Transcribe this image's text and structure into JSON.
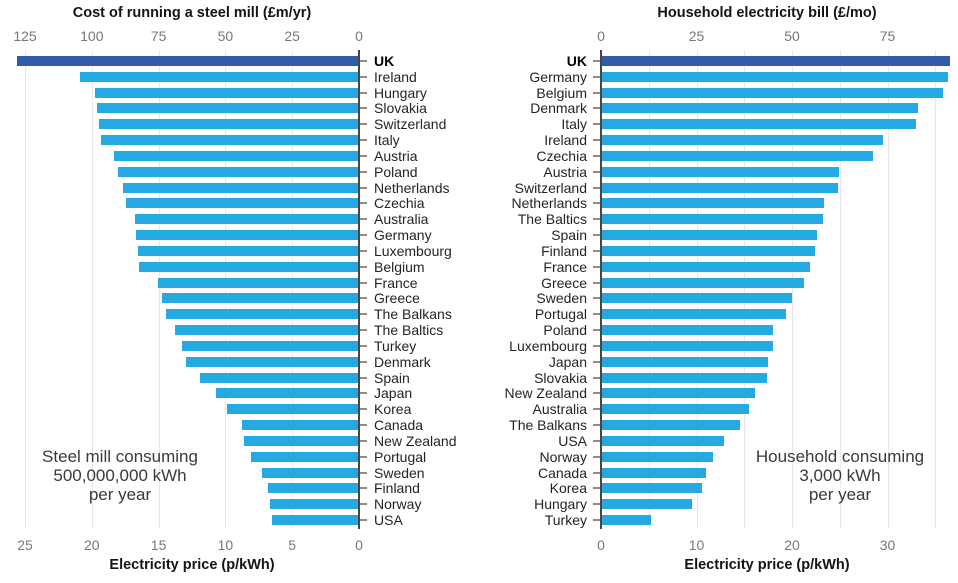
{
  "colors": {
    "uk_bar": "#305ca8",
    "bar": "#25a9e2",
    "zero_axis": "#454545",
    "gridline": "#e9e9e9",
    "axis_text": "#787878",
    "label_text": "#242424"
  },
  "chart_data": [
    {
      "type": "bar",
      "orientation": "horizontal",
      "bars_extend": "left",
      "title": "Cost of running a steel mill (£m/yr)",
      "top_axis": {
        "ticks": [
          125,
          100,
          75,
          50,
          25,
          0
        ],
        "unit": "£m/yr",
        "gbp_m_per_p_kwh": 5
      },
      "bottom_axis": {
        "label": "Electricity price (p/kWh)",
        "ticks": [
          25,
          20,
          15,
          10,
          5,
          0
        ],
        "unit": "p/kWh"
      },
      "xlim_p_kwh": [
        0,
        25.6
      ],
      "gridlines_p_kwh": [
        5,
        10,
        15,
        20,
        25
      ],
      "grid": true,
      "legend": "none",
      "highlight_category": "UK",
      "annotation_lines": [
        "Steel mill consuming",
        "500,000,000 kWh",
        "per year"
      ],
      "categories": [
        "UK",
        "Ireland",
        "Hungary",
        "Slovakia",
        "Switzerland",
        "Italy",
        "Austria",
        "Poland",
        "Netherlands",
        "Czechia",
        "Australia",
        "Germany",
        "Luxembourg",
        "Belgium",
        "France",
        "Greece",
        "The Balkans",
        "The Baltics",
        "Turkey",
        "Denmark",
        "Spain",
        "Japan",
        "Korea",
        "Canada",
        "New Zealand",
        "Portugal",
        "Sweden",
        "Finland",
        "Norway",
        "USA"
      ],
      "values_p_kwh": [
        25.5,
        20.8,
        19.7,
        19.5,
        19.4,
        19.2,
        18.3,
        18.0,
        17.6,
        17.4,
        16.7,
        16.6,
        16.5,
        16.4,
        15.0,
        14.7,
        14.4,
        13.7,
        13.2,
        12.9,
        11.8,
        10.6,
        9.8,
        8.7,
        8.5,
        8.0,
        7.2,
        6.7,
        6.6,
        6.4
      ],
      "values_cost_gbp_m_yr": [
        127.5,
        104.0,
        98.5,
        97.5,
        97.0,
        96.0,
        91.5,
        90.0,
        88.0,
        87.0,
        83.5,
        83.0,
        82.5,
        82.0,
        75.0,
        73.5,
        72.0,
        68.5,
        66.0,
        64.5,
        59.0,
        53.0,
        49.0,
        43.5,
        42.5,
        40.0,
        36.0,
        33.5,
        33.0,
        32.0
      ]
    },
    {
      "type": "bar",
      "orientation": "horizontal",
      "bars_extend": "right",
      "title": "Household electricity bill (£/mo)",
      "top_axis": {
        "ticks": [
          0,
          25,
          50,
          75
        ],
        "unit": "£/mo",
        "gbp_mo_per_p_kwh": 2.5
      },
      "bottom_axis": {
        "label": "Electricity price (p/kWh)",
        "ticks": [
          0,
          10,
          20,
          30
        ],
        "unit": "p/kWh"
      },
      "xlim_p_kwh": [
        0,
        36.5
      ],
      "gridlines_p_kwh": [
        5,
        10,
        15,
        20,
        25,
        30,
        35
      ],
      "grid": true,
      "legend": "none",
      "highlight_category": "UK",
      "annotation_lines": [
        "Household consuming",
        "3,000 kWh",
        "per year"
      ],
      "categories": [
        "UK",
        "Germany",
        "Belgium",
        "Denmark",
        "Italy",
        "Ireland",
        "Czechia",
        "Austria",
        "Switzerland",
        "Netherlands",
        "The Baltics",
        "Spain",
        "Finland",
        "France",
        "Greece",
        "Sweden",
        "Portugal",
        "Poland",
        "Luxembourg",
        "Japan",
        "Slovakia",
        "New Zealand",
        "Australia",
        "The Balkans",
        "USA",
        "Norway",
        "Canada",
        "Korea",
        "Hungary",
        "Turkey"
      ],
      "values_p_kwh": [
        36.4,
        36.2,
        35.7,
        33.1,
        32.9,
        29.4,
        28.4,
        24.8,
        24.7,
        23.2,
        23.1,
        22.5,
        22.3,
        21.8,
        21.2,
        19.9,
        19.3,
        17.9,
        17.9,
        17.4,
        17.3,
        16.0,
        15.4,
        14.4,
        12.8,
        11.6,
        10.9,
        10.5,
        9.4,
        5.1
      ],
      "values_bill_gbp_mo": [
        91.0,
        90.5,
        89.3,
        82.8,
        82.3,
        73.5,
        71.0,
        62.0,
        61.8,
        58.0,
        57.8,
        56.3,
        55.8,
        54.5,
        53.0,
        49.8,
        48.3,
        44.8,
        44.8,
        43.5,
        43.3,
        40.0,
        38.5,
        36.0,
        32.0,
        29.0,
        27.3,
        26.3,
        23.5,
        12.8
      ]
    }
  ]
}
